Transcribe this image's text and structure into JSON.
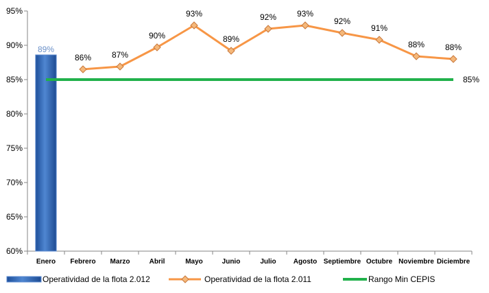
{
  "chart_data": {
    "type": "bar+line",
    "categories": [
      "Enero",
      "Febrero",
      "Marzo",
      "Abril",
      "Mayo",
      "Junio",
      "Julio",
      "Agosto",
      "Septiembre",
      "Octubre",
      "Noviembre",
      "Diciembre"
    ],
    "ylim": [
      0.6,
      0.95
    ],
    "y_ticks": [
      {
        "value": 0.6,
        "label": "60%"
      },
      {
        "value": 0.65,
        "label": "65%"
      },
      {
        "value": 0.7,
        "label": "70%"
      },
      {
        "value": 0.75,
        "label": "75%"
      },
      {
        "value": 0.8,
        "label": "80%"
      },
      {
        "value": 0.85,
        "label": "85%"
      },
      {
        "value": 0.9,
        "label": "90%"
      },
      {
        "value": 0.95,
        "label": "95%"
      }
    ],
    "grid": false,
    "legend_position": "bottom",
    "series": [
      {
        "name": "Operatividad de la flota 2.012",
        "kind": "bar",
        "color": "#2f64b5",
        "values": [
          0.886,
          null,
          null,
          null,
          null,
          null,
          null,
          null,
          null,
          null,
          null,
          null
        ],
        "labels": [
          "89%",
          null,
          null,
          null,
          null,
          null,
          null,
          null,
          null,
          null,
          null,
          null
        ]
      },
      {
        "name": "Operatividad de la flota 2.011",
        "kind": "line",
        "color": "#f79646",
        "marker_color": "#f5b87a",
        "values": [
          null,
          0.865,
          0.869,
          0.897,
          0.929,
          0.892,
          0.924,
          0.929,
          0.918,
          0.908,
          0.884,
          0.88
        ],
        "labels": [
          null,
          "86%",
          "87%",
          "90%",
          "93%",
          "89%",
          "92%",
          "93%",
          "92%",
          "91%",
          "88%",
          "88%"
        ]
      },
      {
        "name": "Rango Min CEPIS",
        "kind": "line",
        "color": "#21b14b",
        "values": [
          0.85,
          0.85,
          0.85,
          0.85,
          0.85,
          0.85,
          0.85,
          0.85,
          0.85,
          0.85,
          0.85,
          0.85
        ],
        "end_label": "85%"
      }
    ]
  }
}
